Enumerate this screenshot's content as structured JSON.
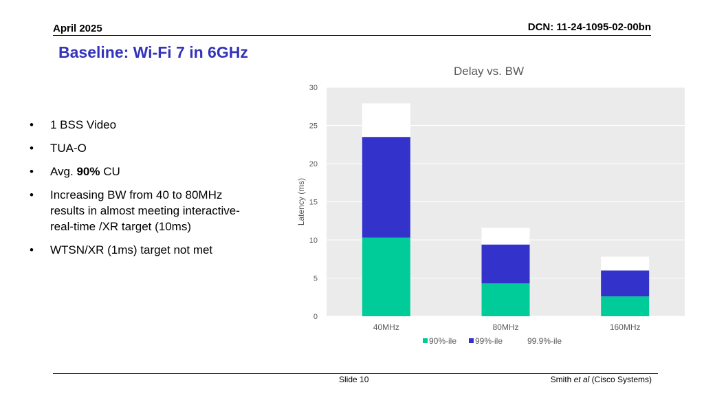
{
  "header": {
    "date": "April 2025",
    "dcn": "DCN: 11-24-1095-02-00bn"
  },
  "slide_title": "Baseline: Wi-Fi 7 in 6GHz",
  "bullets": [
    {
      "text": "1 BSS Video"
    },
    {
      "text": "TUA-O"
    },
    {
      "prefix": "Avg. ",
      "bold": "90%",
      "suffix": " CU"
    },
    {
      "text": "Increasing BW from 40 to 80MHz results in almost meeting interactive-real-time /XR target (10ms)"
    },
    {
      "text": "WTSN/XR (1ms) target not met"
    }
  ],
  "bullet_symbol": "•",
  "footer": {
    "slide": "Slide 10",
    "author_name": "Smith ",
    "author_etal": "et al",
    "author_org": " (Cisco Systems)"
  },
  "colors": {
    "title": "#3333bb",
    "series_90": "#00cc99",
    "series_99": "#3333cc",
    "series_999": "#ffffff",
    "plot_bg": "#ebebeb"
  },
  "chart_data": {
    "type": "bar",
    "stacked": true,
    "title": "Delay vs. BW",
    "ylabel": "Latency (ms)",
    "xlabel": "",
    "categories": [
      "40MHz",
      "80MHz",
      "160MHz"
    ],
    "ylim": [
      0,
      30
    ],
    "yticks": [
      "0",
      "5",
      "10",
      "15",
      "20",
      "25",
      "30"
    ],
    "grid": true,
    "legend_position": "bottom",
    "series": [
      {
        "name": "90%-ile",
        "values": [
          10.3,
          4.3,
          2.6
        ],
        "color": "#00cc99"
      },
      {
        "name": "99%-ile",
        "values": [
          13.2,
          5.1,
          3.4
        ],
        "color": "#3333cc"
      },
      {
        "name": "99.9%-ile",
        "values": [
          4.4,
          2.2,
          1.8
        ],
        "color": "#ffffff"
      }
    ]
  }
}
